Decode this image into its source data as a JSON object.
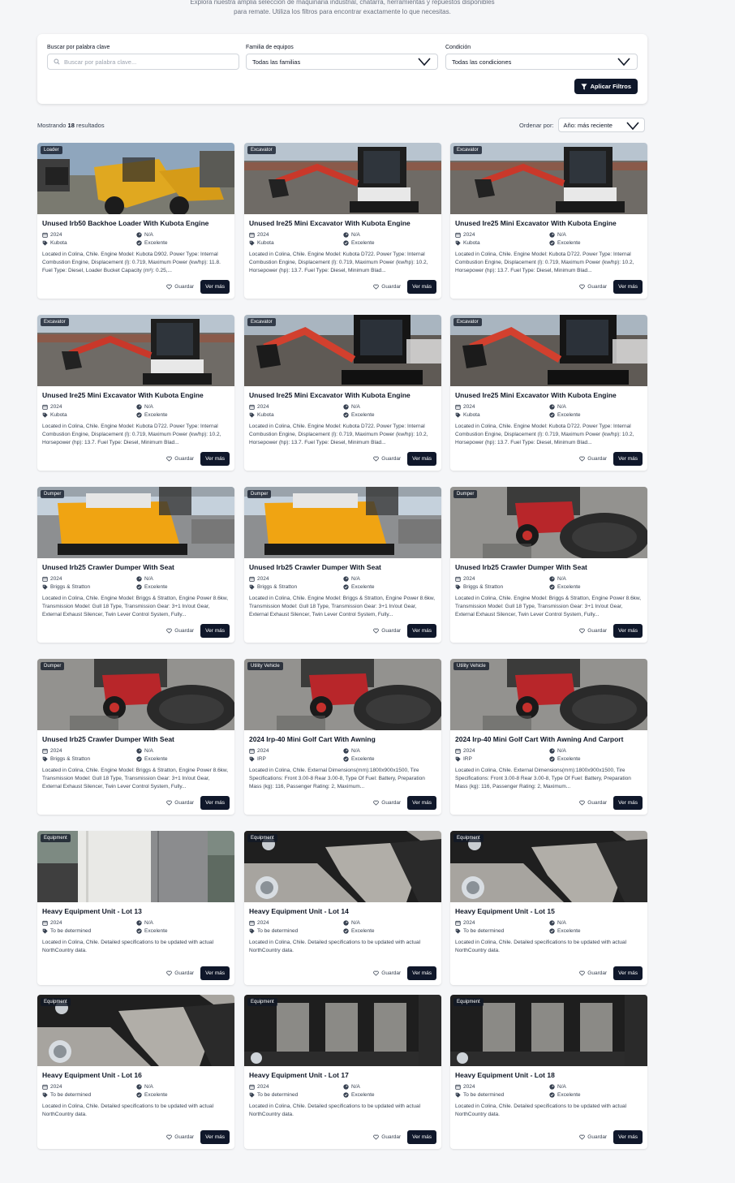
{
  "intro": {
    "line1": "Explora nuestra amplia selección de maquinaria industrial, chatarra, herramientas y repuestos disponibles",
    "line2": "para remate. Utiliza los filtros para encontrar exactamente lo que necesitas."
  },
  "filters": {
    "keyword_label": "Buscar por palabra clave",
    "keyword_placeholder": "Buscar por palabra clave...",
    "family_label": "Familia de equipos",
    "family_value": "Todas las familias",
    "condition_label": "Condición",
    "condition_value": "Todas las condiciones",
    "apply_label": "Aplicar Filtros"
  },
  "results": {
    "prefix": "Mostrando",
    "count": "18",
    "suffix": "resultados"
  },
  "sort": {
    "label": "Ordenar por:",
    "value": "Año: más reciente"
  },
  "card_labels": {
    "save": "Guardar",
    "more": "Ver más"
  },
  "colors": {
    "primary": "#0f172a",
    "page_bg": "#f5f6f8",
    "badge_bg": "#111827"
  },
  "cards": [
    {
      "badge": "Loader",
      "title": "Unused Irb50 Backhoe Loader With Kubota Engine",
      "year": "2024",
      "hours": "N/A",
      "brand": "Kubota",
      "condition": "Excelente",
      "description": "Located in Colina, Chile. Engine Model: Kubota D902. Power Type: Internal Combustion Engine, Displacement (l): 0.719, Maximum Power (kw/hp): 11.8. Fuel Type: Diesel, Loader Bucket Capacity (m³): 0.25,...",
      "photo": "loader"
    },
    {
      "badge": "Excavator",
      "title": "Unused Ire25 Mini Excavator With Kubota Engine",
      "year": "2024",
      "hours": "N/A",
      "brand": "Kubota",
      "condition": "Excelente",
      "description": "Located in Colina, Chile. Engine Model: Kubota D722. Power Type: Internal Combustion Engine, Displacement (l): 0.719, Maximum Power (kw/hp): 10.2, Horsepower (hp): 13.7. Fuel Type: Diesel, Minimum Blad...",
      "photo": "excavator"
    },
    {
      "badge": "Excavator",
      "title": "Unused Ire25 Mini Excavator With Kubota Engine",
      "year": "2024",
      "hours": "N/A",
      "brand": "Kubota",
      "condition": "Excelente",
      "description": "Located in Colina, Chile. Engine Model: Kubota D722. Power Type: Internal Combustion Engine, Displacement (l): 0.719, Maximum Power (kw/hp): 10.2, Horsepower (hp): 13.7. Fuel Type: Diesel, Minimum Blad...",
      "photo": "excavator"
    },
    {
      "badge": "Excavator",
      "title": "Unused Ire25 Mini Excavator With Kubota Engine",
      "year": "2024",
      "hours": "N/A",
      "brand": "Kubota",
      "condition": "Excelente",
      "description": "Located in Colina, Chile. Engine Model: Kubota D722. Power Type: Internal Combustion Engine, Displacement (l): 0.719, Maximum Power (kw/hp): 10.2, Horsepower (hp): 13.7. Fuel Type: Diesel, Minimum Blad...",
      "photo": "excavator"
    },
    {
      "badge": "Excavator",
      "title": "Unused Ire25 Mini Excavator With Kubota Engine",
      "year": "2024",
      "hours": "N/A",
      "brand": "Kubota",
      "condition": "Excelente",
      "description": "Located in Colina, Chile. Engine Model: Kubota D722. Power Type: Internal Combustion Engine, Displacement (l): 0.719, Maximum Power (kw/hp): 10.2, Horsepower (hp): 13.7. Fuel Type: Diesel, Minimum Blad...",
      "photo": "excavator2"
    },
    {
      "badge": "Excavator",
      "title": "Unused Ire25 Mini Excavator With Kubota Engine",
      "year": "2024",
      "hours": "N/A",
      "brand": "Kubota",
      "condition": "Excelente",
      "description": "Located in Colina, Chile. Engine Model: Kubota D722. Power Type: Internal Combustion Engine, Displacement (l): 0.719, Maximum Power (kw/hp): 10.2, Horsepower (hp): 13.7. Fuel Type: Diesel, Minimum Blad...",
      "photo": "excavator2"
    },
    {
      "badge": "Dumper",
      "title": "Unused Irb25 Crawler Dumper With Seat",
      "year": "2024",
      "hours": "N/A",
      "brand": "Briggs & Stratton",
      "condition": "Excelente",
      "description": "Located in Colina, Chile. Engine Model: Briggs & Stratton, Engine Power 8.6kw, Transmission Model: Gull 18 Type, Transmission Gear: 3+1 In/out Gear, External Exhaust Silencer, Twin Lever Control System, Fully...",
      "photo": "dumper"
    },
    {
      "badge": "Dumper",
      "title": "Unused Irb25 Crawler Dumper With Seat",
      "year": "2024",
      "hours": "N/A",
      "brand": "Briggs & Stratton",
      "condition": "Excelente",
      "description": "Located in Colina, Chile. Engine Model: Briggs & Stratton, Engine Power 8.6kw, Transmission Model: Gull 18 Type, Transmission Gear: 3+1 In/out Gear, External Exhaust Silencer, Twin Lever Control System, Fully...",
      "photo": "dumper"
    },
    {
      "badge": "Dumper",
      "title": "Unused Irb25 Crawler Dumper With Seat",
      "year": "2024",
      "hours": "N/A",
      "brand": "Briggs & Stratton",
      "condition": "Excelente",
      "description": "Located in Colina, Chile. Engine Model: Briggs & Stratton, Engine Power 8.6kw, Transmission Model: Gull 18 Type, Transmission Gear: 3+1 In/out Gear, External Exhaust Silencer, Twin Lever Control System, Fully...",
      "photo": "cart"
    },
    {
      "badge": "Dumper",
      "title": "Unused Irb25 Crawler Dumper With Seat",
      "year": "2024",
      "hours": "N/A",
      "brand": "Briggs & Stratton",
      "condition": "Excelente",
      "description": "Located in Colina, Chile. Engine Model: Briggs & Stratton, Engine Power 8.6kw, Transmission Model: Gull 18 Type, Transmission Gear: 3+1 In/out Gear, External Exhaust Silencer, Twin Lever Control System, Fully...",
      "photo": "cart"
    },
    {
      "badge": "Utility Vehicle",
      "title": "2024 Irp-40 Mini Golf Cart With Awning",
      "year": "2024",
      "hours": "N/A",
      "brand": "IRP",
      "condition": "Excelente",
      "description": "Located in Colina, Chile. External Dimensions(mm):1800x900x1500, Tire Specifications: Front 3.00-8 Rear 3.00-8, Type Of Fuel: Battery, Preparation Mass (kg): 116, Passenger Rating: 2, Maximum...",
      "photo": "cart"
    },
    {
      "badge": "Utility Vehicle",
      "title": "2024 Irp-40 Mini Golf Cart With Awning And Carport",
      "year": "2024",
      "hours": "N/A",
      "brand": "IRP",
      "condition": "Excelente",
      "description": "Located in Colina, Chile. External Dimensions(mm):1800x900x1500, Tire Specifications: Front 3.00-8 Rear 3.00-8, Type Of Fuel: Battery, Preparation Mass (kg): 116, Passenger Rating: 2, Maximum...",
      "photo": "cart"
    },
    {
      "badge": "Equipment",
      "title": "Heavy Equipment Unit - Lot 13",
      "year": "2024",
      "hours": "N/A",
      "brand": "To be determined",
      "condition": "Excelente",
      "description": "Located in Colina, Chile. Detailed specifications to be updated with actual NorthCountry data.",
      "photo": "door"
    },
    {
      "badge": "Equipment",
      "title": "Heavy Equipment Unit - Lot 14",
      "year": "2024",
      "hours": "N/A",
      "brand": "To be determined",
      "condition": "Excelente",
      "description": "Located in Colina, Chile. Detailed specifications to be updated with actual NorthCountry data.",
      "photo": "metal"
    },
    {
      "badge": "Equipment",
      "title": "Heavy Equipment Unit - Lot 15",
      "year": "2024",
      "hours": "N/A",
      "brand": "To be determined",
      "condition": "Excelente",
      "description": "Located in Colina, Chile. Detailed specifications to be updated with actual NorthCountry data.",
      "photo": "metal"
    },
    {
      "badge": "Equipment",
      "title": "Heavy Equipment Unit - Lot 16",
      "year": "2024",
      "hours": "N/A",
      "brand": "To be determined",
      "condition": "Excelente",
      "description": "Located in Colina, Chile. Detailed specifications to be updated with actual NorthCountry data.",
      "photo": "metal"
    },
    {
      "badge": "Equipment",
      "title": "Heavy Equipment Unit - Lot 17",
      "year": "2024",
      "hours": "N/A",
      "brand": "To be determined",
      "condition": "Excelente",
      "description": "Located in Colina, Chile. Detailed specifications to be updated with actual NorthCountry data.",
      "photo": "grate"
    },
    {
      "badge": "Equipment",
      "title": "Heavy Equipment Unit - Lot 18",
      "year": "2024",
      "hours": "N/A",
      "brand": "To be determined",
      "condition": "Excelente",
      "description": "Located in Colina, Chile. Detailed specifications to be updated with actual NorthCountry data.",
      "photo": "grate"
    }
  ]
}
